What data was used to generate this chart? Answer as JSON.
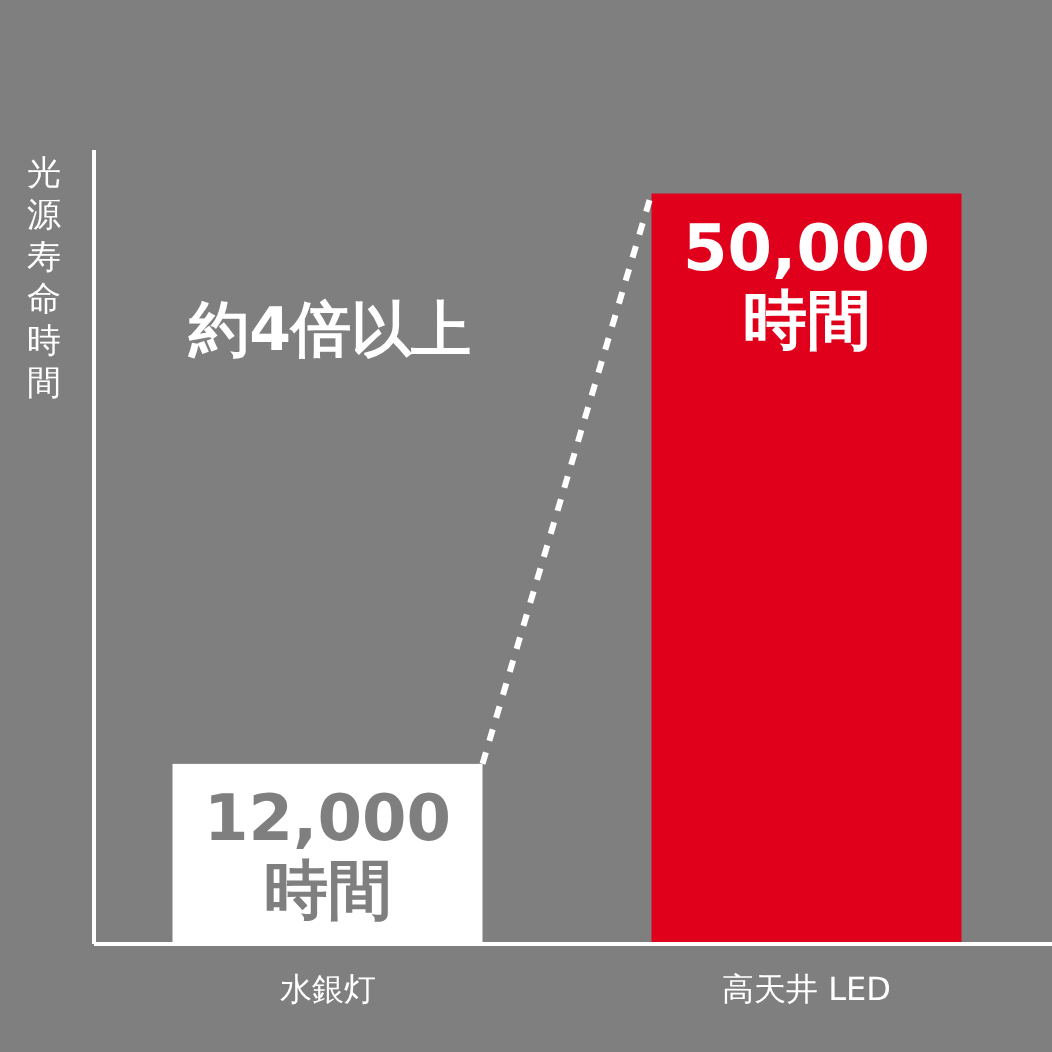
{
  "chart_data": {
    "type": "bar",
    "ylabel": "光源寿命時間",
    "categories": [
      "水銀灯",
      "高天井 LED"
    ],
    "values": [
      12000,
      50000
    ],
    "colors": [
      "#ffffff",
      "#e0001b"
    ],
    "value_labels": [
      "12,000\n時間",
      "50,000\n時間"
    ],
    "annotations": [
      "約4倍以上"
    ]
  }
}
